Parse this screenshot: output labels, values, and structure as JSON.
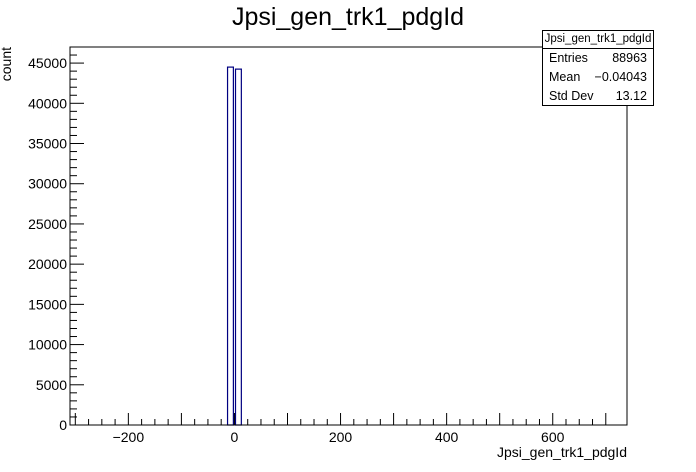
{
  "chart_data": {
    "type": "bar",
    "title": "Jpsi_gen_trk1_pdgId",
    "xlabel": "Jpsi_gen_trk1_pdgId",
    "ylabel": "count",
    "xlim": [
      -310,
      740
    ],
    "ylim": [
      0,
      47000
    ],
    "x_ticks": [
      -200,
      0,
      200,
      400,
      600
    ],
    "x_tick_labels": [
      "−200",
      "0",
      "200",
      "400",
      "600"
    ],
    "y_ticks": [
      0,
      5000,
      10000,
      15000,
      20000,
      25000,
      30000,
      35000,
      40000,
      45000
    ],
    "y_tick_labels": [
      "0",
      "5000",
      "10000",
      "15000",
      "20000",
      "25000",
      "30000",
      "35000",
      "40000",
      "45000"
    ],
    "bins": [
      {
        "x0": -13,
        "x1": -2,
        "value": 44500
      },
      {
        "x0": 2,
        "x1": 13,
        "value": 44250
      }
    ],
    "bar_color": "#000080",
    "grid": false
  },
  "stats": {
    "title": "Jpsi_gen_trk1_pdgId",
    "entries_label": "Entries",
    "entries_value": "88963",
    "mean_label": "Mean",
    "mean_value": "−0.04043",
    "stddev_label": "Std Dev",
    "stddev_value": "13.12"
  }
}
